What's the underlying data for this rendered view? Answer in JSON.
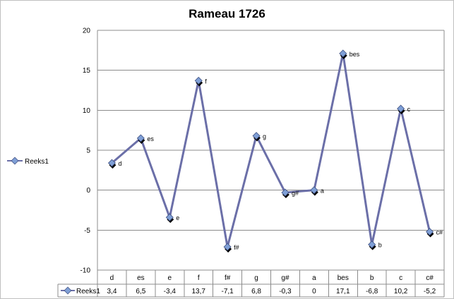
{
  "chart_data": {
    "type": "line",
    "title": "Rameau 1726",
    "categories": [
      "d",
      "es",
      "e",
      "f",
      "f#",
      "g",
      "g#",
      "a",
      "bes",
      "b",
      "c",
      "c#"
    ],
    "series": [
      {
        "name": "Reeks1",
        "values": [
          3.4,
          6.5,
          -3.4,
          13.7,
          -7.1,
          6.8,
          -0.3,
          0,
          17.1,
          -6.8,
          10.2,
          -5.2
        ],
        "table_values": [
          "3,4",
          "6,5",
          "-3,4",
          "13,7",
          "-7,1",
          "6,8",
          "-0,3",
          "0",
          "17,1",
          "-6,8",
          "10,2",
          "-5,2"
        ],
        "point_labels": [
          "d",
          "es",
          "e",
          "f",
          "f#",
          "g",
          "g#",
          "a",
          "bes",
          "b",
          "c",
          "c#"
        ],
        "color": "#6b6fa8",
        "marker_color": "#7f9fd6"
      }
    ],
    "ylim": [
      -10,
      20
    ],
    "yticks": [
      -10,
      -5,
      0,
      5,
      10,
      15,
      20
    ],
    "grid": true,
    "legend": "left",
    "data_table": true
  }
}
